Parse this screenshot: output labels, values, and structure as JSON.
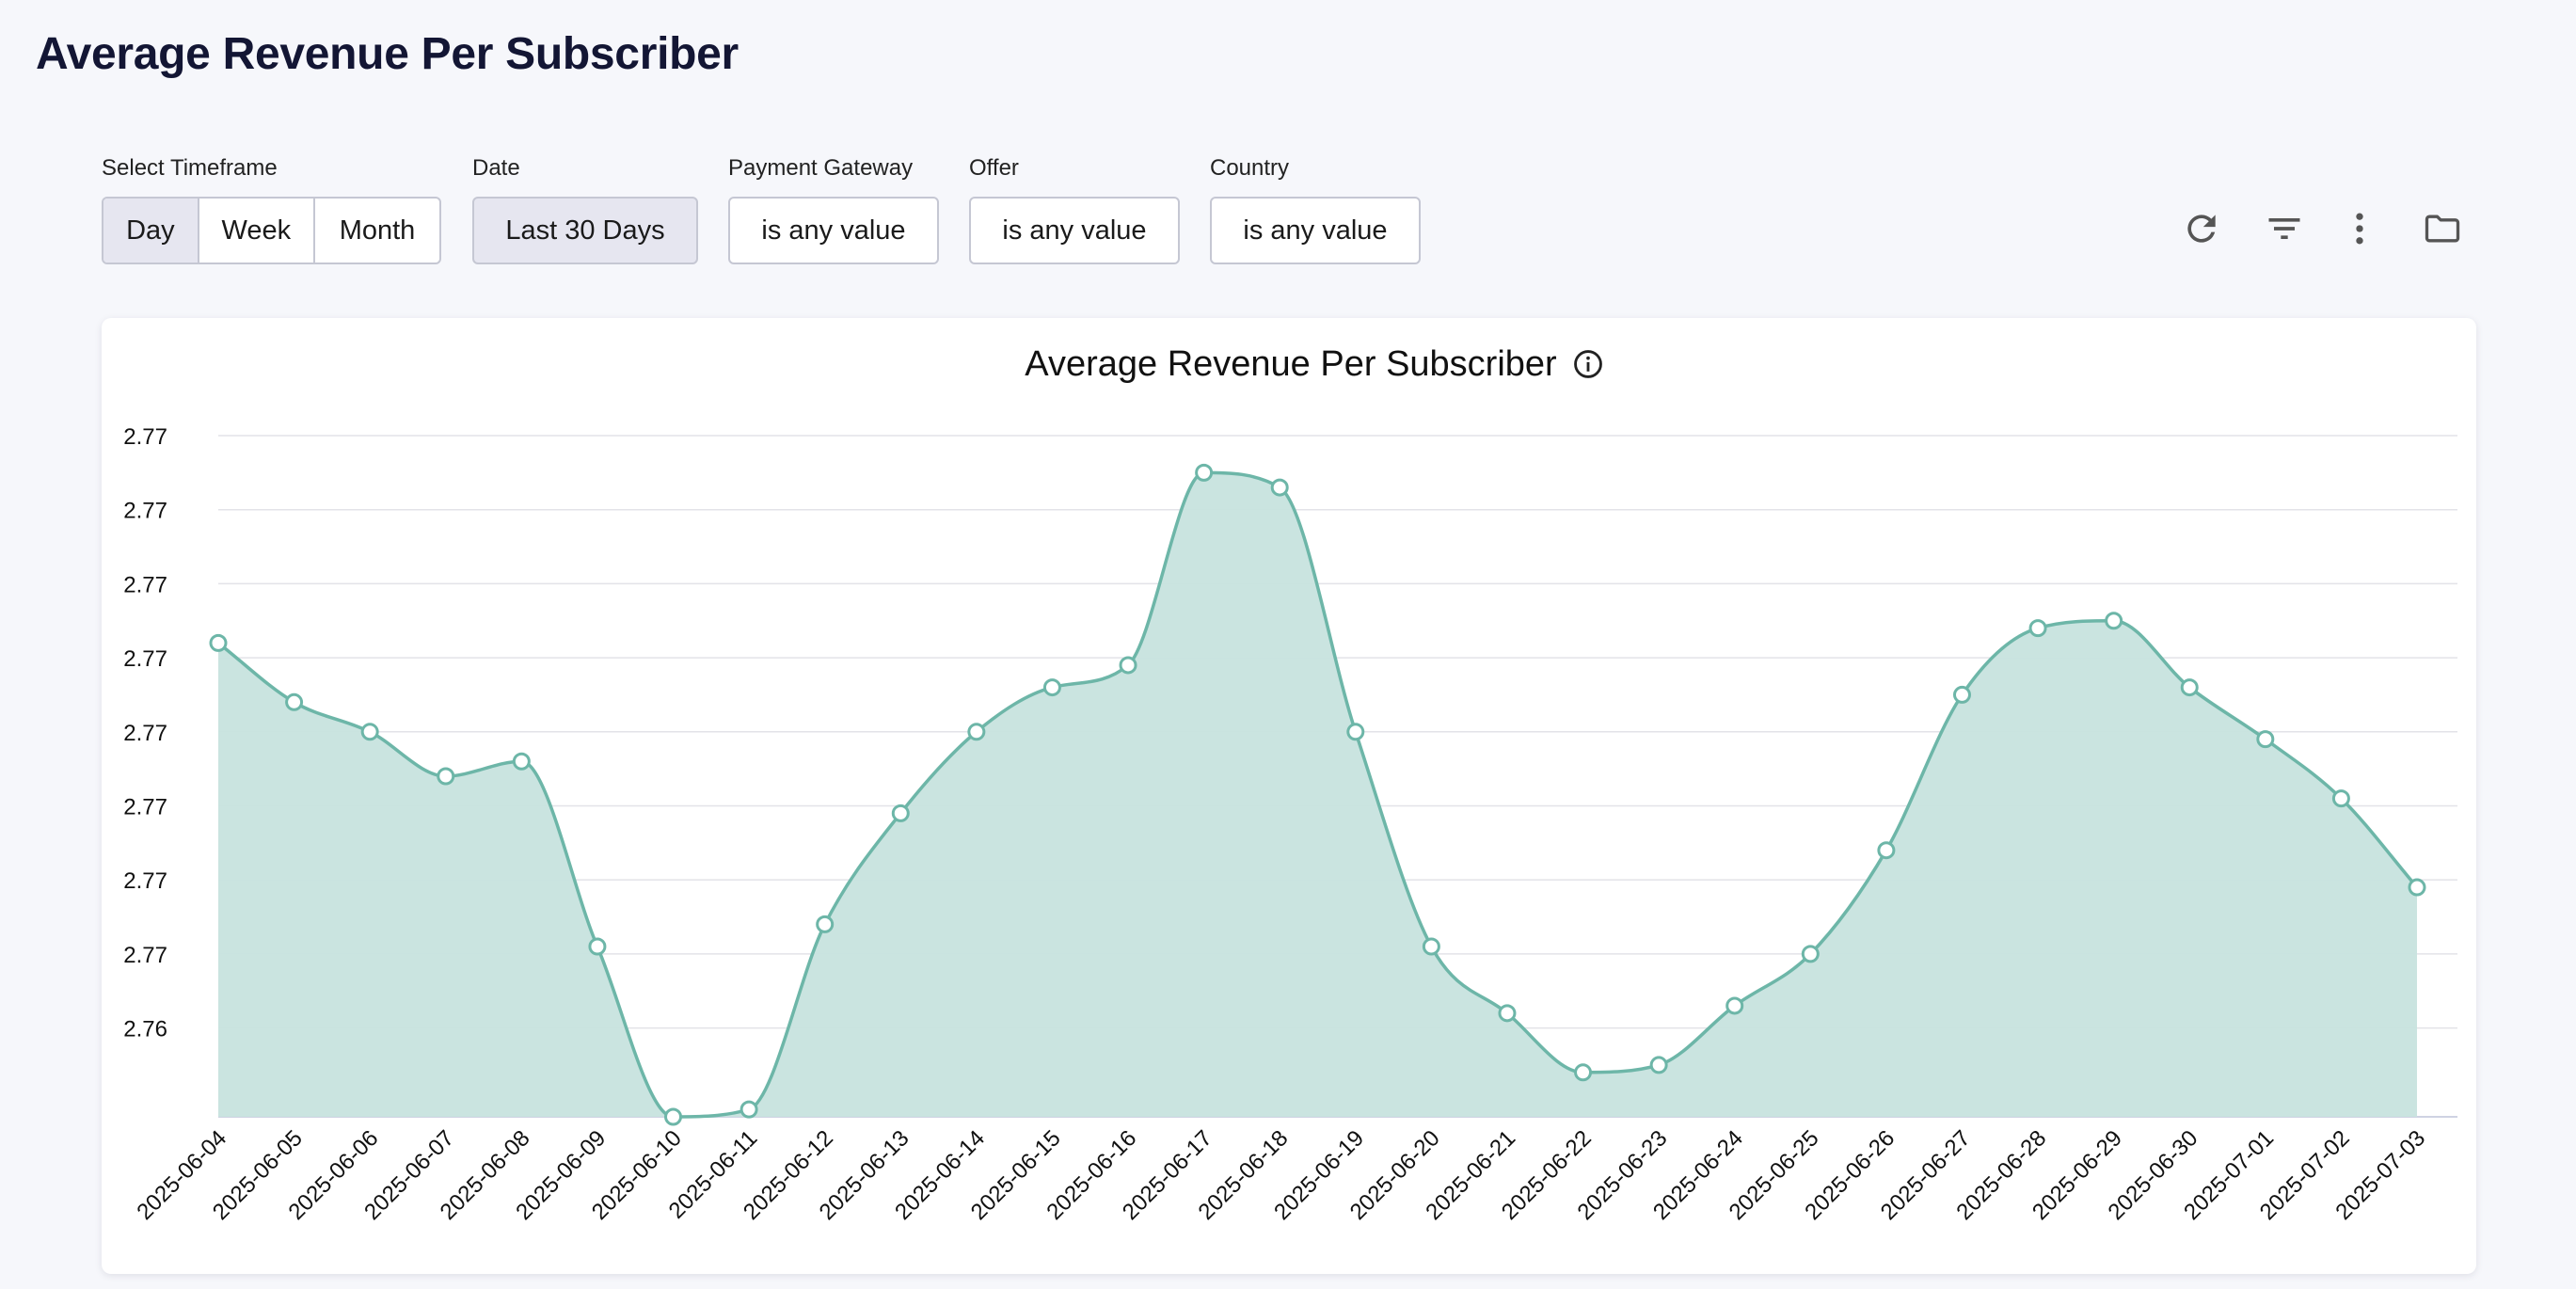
{
  "page": {
    "title": "Average Revenue Per Subscriber"
  },
  "filters": {
    "timeframe": {
      "label": "Select Timeframe",
      "options": [
        "Day",
        "Week",
        "Month"
      ],
      "selected": "Day"
    },
    "date": {
      "label": "Date",
      "value": "Last 30 Days"
    },
    "payment_gateway": {
      "label": "Payment Gateway",
      "value": "is any value"
    },
    "offer": {
      "label": "Offer",
      "value": "is any value"
    },
    "country": {
      "label": "Country",
      "value": "is any value"
    }
  },
  "toolbar": {
    "icons": [
      "refresh-icon",
      "filter-icon",
      "more-vertical-icon",
      "folder-icon"
    ]
  },
  "colors": {
    "area_fill": "#c7e3de",
    "line": "#6db6a8",
    "grid": "#e3e3e8"
  },
  "chart_data": {
    "type": "area",
    "title": "Average Revenue Per Subscriber",
    "xlabel": "",
    "ylabel": "",
    "x": [
      "2025-06-04",
      "2025-06-05",
      "2025-06-06",
      "2025-06-07",
      "2025-06-08",
      "2025-06-09",
      "2025-06-10",
      "2025-06-11",
      "2025-06-12",
      "2025-06-13",
      "2025-06-14",
      "2025-06-15",
      "2025-06-16",
      "2025-06-17",
      "2025-06-18",
      "2025-06-19",
      "2025-06-20",
      "2025-06-21",
      "2025-06-22",
      "2025-06-23",
      "2025-06-24",
      "2025-06-25",
      "2025-06-26",
      "2025-06-27",
      "2025-06-28",
      "2025-06-29",
      "2025-06-30",
      "2025-07-01",
      "2025-07-02",
      "2025-07-03"
    ],
    "series": [
      {
        "values": [
          2.7692,
          2.7684,
          2.768,
          2.7674,
          2.7676,
          2.7651,
          2.7628,
          2.7629,
          2.7654,
          2.7669,
          2.768,
          2.7686,
          2.7689,
          2.7715,
          2.7713,
          2.768,
          2.7651,
          2.7642,
          2.7634,
          2.7635,
          2.7643,
          2.765,
          2.7664,
          2.7685,
          2.7694,
          2.7695,
          2.7686,
          2.7679,
          2.7671,
          2.7659
        ]
      }
    ],
    "yticks": [
      2.764,
      2.765,
      2.766,
      2.767,
      2.768,
      2.769,
      2.77,
      2.771,
      2.772
    ],
    "ytick_labels": [
      "2.76",
      "2.77",
      "2.77",
      "2.77",
      "2.77",
      "2.77",
      "2.77",
      "2.77",
      "2.77"
    ],
    "ylim": [
      2.7628,
      2.772
    ],
    "grid": true,
    "legend": "none"
  }
}
